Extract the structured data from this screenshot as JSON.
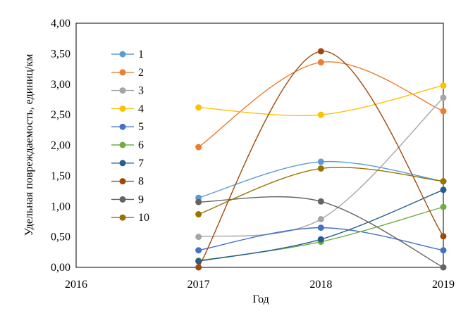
{
  "chart_data": {
    "type": "line",
    "title": "",
    "xlabel": "Год",
    "ylabel": "Удельная повреждаемость, единиц/км",
    "xlim": [
      2016,
      2019
    ],
    "ylim": [
      0,
      4
    ],
    "x_ticks": [
      "2016",
      "2017",
      "2018",
      "2019"
    ],
    "y_ticks": [
      "0,00",
      "0,50",
      "1,00",
      "1,50",
      "2,00",
      "2,50",
      "3,00",
      "3,50",
      "4,00"
    ],
    "grid": false,
    "legend_position": "top-left inside",
    "smooth": true,
    "x": [
      2017,
      2018,
      2019
    ],
    "series": [
      {
        "name": "1",
        "color": "#5B9BD5",
        "values": [
          1.14,
          1.73,
          1.41
        ]
      },
      {
        "name": "2",
        "color": "#ED7D31",
        "values": [
          1.97,
          3.36,
          2.56
        ]
      },
      {
        "name": "3",
        "color": "#A5A5A5",
        "values": [
          0.5,
          0.79,
          2.78
        ]
      },
      {
        "name": "4",
        "color": "#FFC000",
        "values": [
          2.62,
          2.5,
          2.98
        ]
      },
      {
        "name": "5",
        "color": "#4472C4",
        "values": [
          0.28,
          0.65,
          0.28
        ]
      },
      {
        "name": "6",
        "color": "#70AD47",
        "values": [
          0.11,
          0.42,
          0.99
        ]
      },
      {
        "name": "7",
        "color": "#255E91",
        "values": [
          0.1,
          0.46,
          1.27
        ]
      },
      {
        "name": "8",
        "color": "#9E480E",
        "values": [
          0.0,
          3.54,
          0.51
        ]
      },
      {
        "name": "9",
        "color": "#636363",
        "values": [
          1.07,
          1.08,
          0.0
        ]
      },
      {
        "name": "10",
        "color": "#997300",
        "values": [
          0.87,
          1.62,
          1.41
        ]
      }
    ]
  }
}
